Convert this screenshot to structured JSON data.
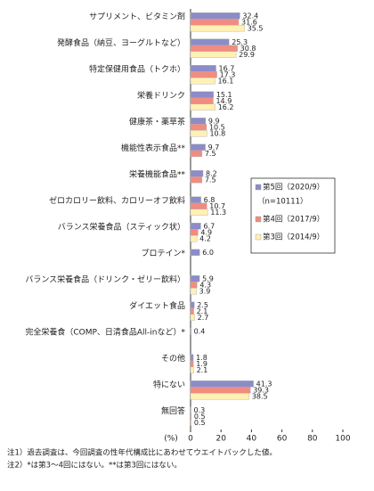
{
  "chart_data": {
    "type": "bar",
    "orientation": "horizontal",
    "x_unit_label": "(%)",
    "categories": [
      "サプリメント、ビタミン剤",
      "発酵食品（納豆、ヨーグルトなど）",
      "特定保健用食品（トクホ）",
      "栄養ドリンク",
      "健康茶・薬草茶",
      "機能性表示食品**",
      "栄養機能食品**",
      "ゼロカロリー飲料、カロリーオフ飲料",
      "バランス栄養食品（スティック状）",
      "プロテイン*",
      "バランス栄養食品（ドリンク・ゼリー飲料）",
      "ダイエット食品",
      "完全栄養食（COMP、日清食品All-inなど）*",
      "その他",
      "特にない",
      "無回答"
    ],
    "series": [
      {
        "name": "第5回（2020/9）",
        "note": "（n=10111）",
        "color": "#8c8cc8",
        "values": [
          32.4,
          25.3,
          16.7,
          15.1,
          9.9,
          9.7,
          8.2,
          6.8,
          6.7,
          6.0,
          5.9,
          2.5,
          0.4,
          1.8,
          41.3,
          0.3
        ],
        "value_labels": [
          "32.4",
          "25.3",
          "16.7",
          "15.1",
          "9.9",
          "9.7",
          "8.2",
          "6.8",
          "6.7",
          "6.0",
          "5.9",
          "2.5",
          "0.4",
          "1.8",
          "41.3",
          "0.3"
        ]
      },
      {
        "name": "第4回（2017/9）",
        "color": "#f08c80",
        "values": [
          31.6,
          30.8,
          17.3,
          14.9,
          10.5,
          7.5,
          7.5,
          10.7,
          4.9,
          null,
          4.3,
          2.1,
          null,
          1.9,
          39.3,
          0.5
        ],
        "value_labels": [
          "31.6",
          "30.8",
          "17.3",
          "14.9",
          "10.5",
          "7.5",
          "7.5",
          "10.7",
          "4.9",
          null,
          "4.3",
          "2.1",
          null,
          "1.9",
          "39.3",
          "0.5"
        ]
      },
      {
        "name": "第3回（2014/9）",
        "color": "#fff0b4",
        "values": [
          35.5,
          29.9,
          16.1,
          16.2,
          10.8,
          null,
          null,
          11.3,
          4.2,
          null,
          3.9,
          2.7,
          null,
          2.1,
          38.5,
          0.5
        ],
        "value_labels": [
          "35.5",
          "29.9",
          "16.1",
          "16.2",
          "10.8",
          null,
          null,
          "11.3",
          "4.2",
          null,
          "3.9",
          "2.7",
          null,
          "2.1",
          "38.5",
          "0.5"
        ]
      }
    ],
    "xlim": [
      0,
      100
    ],
    "xticks": [
      0,
      20,
      40,
      60,
      80,
      100
    ],
    "notes": [
      "注1）過去調査は、今回調査の性年代構成比にあわせてウエイトバックした値。",
      "注2）*は第3～4回にはない。**は第3回にはない。"
    ]
  }
}
